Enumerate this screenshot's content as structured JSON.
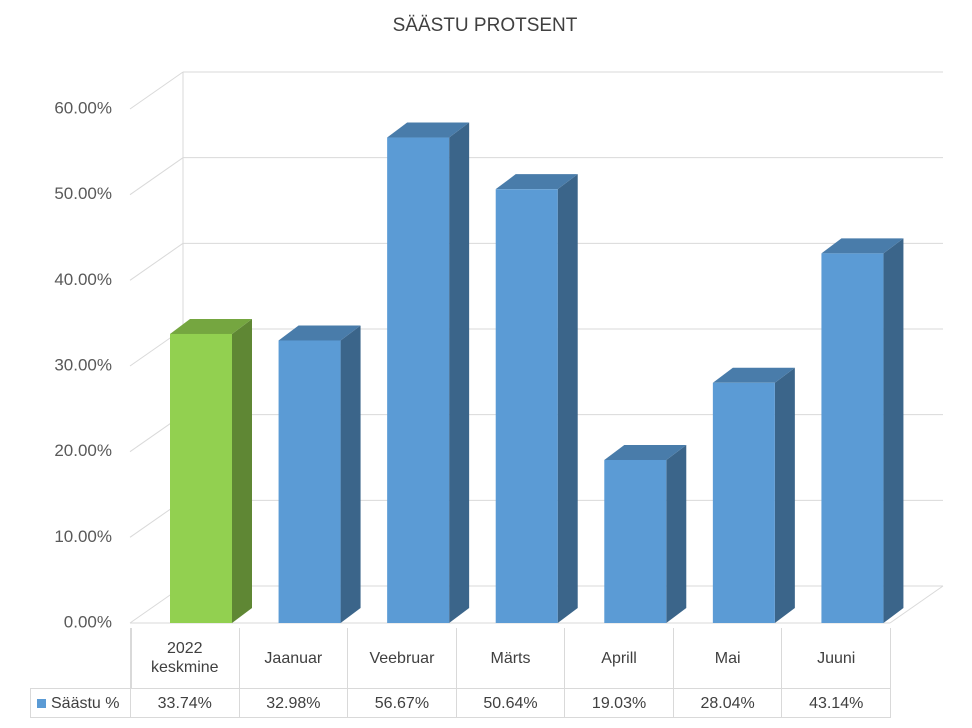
{
  "chart_data": {
    "type": "bar3d",
    "title": "SÄÄSTU PROTSENT",
    "categories": [
      "2022 keskmine",
      "Jaanuar",
      "Veebruar",
      "Märts",
      "Aprill",
      "Mai",
      "Juuni"
    ],
    "series": [
      {
        "name": "Säästu %",
        "color": "#5b9bd5",
        "values": [
          33.74,
          32.98,
          56.67,
          50.64,
          19.03,
          28.04,
          43.14
        ],
        "value_labels": [
          "33.74%",
          "32.98%",
          "56.67%",
          "50.64%",
          "19.03%",
          "28.04%",
          "43.14%"
        ],
        "colors": [
          "#92d050",
          "#5b9bd5",
          "#5b9bd5",
          "#5b9bd5",
          "#5b9bd5",
          "#5b9bd5",
          "#5b9bd5"
        ]
      }
    ],
    "ylim": [
      0,
      60
    ],
    "yticks": [
      {
        "value": 0,
        "label": "0.00%"
      },
      {
        "value": 10,
        "label": "10.00%"
      },
      {
        "value": 20,
        "label": "20.00%"
      },
      {
        "value": 30,
        "label": "30.00%"
      },
      {
        "value": 40,
        "label": "40.00%"
      },
      {
        "value": 50,
        "label": "50.00%"
      },
      {
        "value": 60,
        "label": "60.00%"
      }
    ],
    "grid": true
  }
}
